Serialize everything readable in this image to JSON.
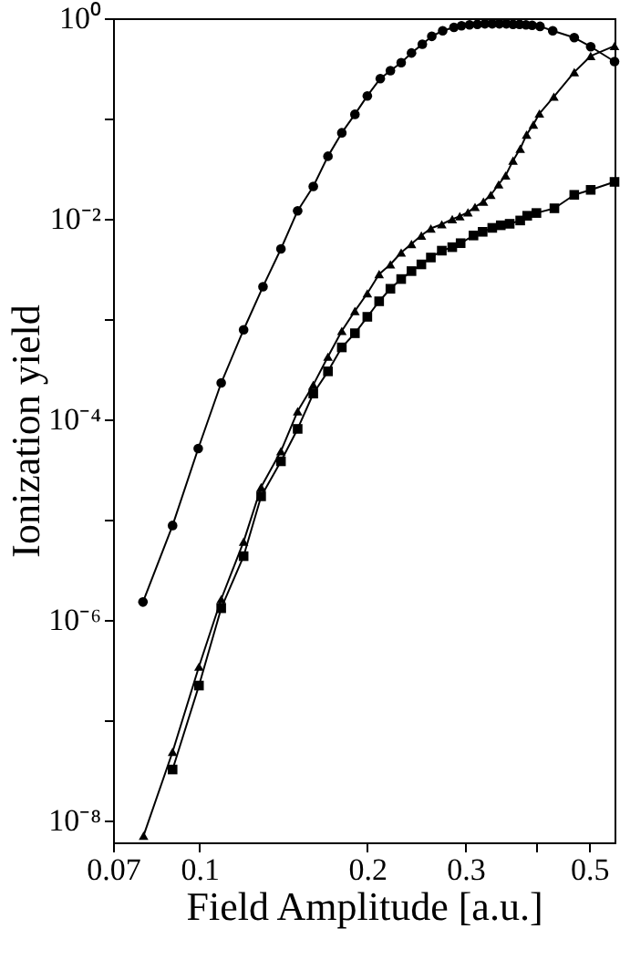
{
  "chart_data": {
    "type": "line",
    "xlabel": "Field Amplitude [a.u.]",
    "ylabel": "Ionization yield",
    "log": "xy",
    "grid": false,
    "xlim": [
      0.07,
      0.555
    ],
    "ylim": [
      6e-09,
      1
    ],
    "xticks": [
      0.07,
      0.1,
      0.2,
      0.3,
      {
        "value": 0.4,
        "label": null
      },
      0.5
    ],
    "yticks": [
      {
        "value": 1,
        "label": "10⁰"
      },
      {
        "value": 0.1,
        "label": null
      },
      {
        "value": 0.01,
        "label": "10⁻²"
      },
      {
        "value": 0.001,
        "label": null
      },
      {
        "value": 0.0001,
        "label": "10⁻⁴"
      },
      {
        "value": 1e-05,
        "label": null
      },
      {
        "value": 1e-06,
        "label": "10⁻⁶"
      },
      {
        "value": 1e-07,
        "label": null
      },
      {
        "value": 1e-08,
        "label": "10⁻⁸"
      }
    ],
    "series": [
      {
        "color": "#000000",
        "marker": "circle",
        "x": [
          0.0792,
          0.0895,
          0.0995,
          0.1094,
          0.12,
          0.13,
          0.14,
          0.15,
          0.16,
          0.17,
          0.18,
          0.19,
          0.2,
          0.211,
          0.22,
          0.23,
          0.24,
          0.251,
          0.261,
          0.273,
          0.286,
          0.295,
          0.305,
          0.315,
          0.325,
          0.335,
          0.345,
          0.355,
          0.365,
          0.375,
          0.385,
          0.395,
          0.408,
          0.43,
          0.47,
          0.503,
          0.555
        ],
        "values": [
          1.5e-06,
          8.7e-06,
          5.1e-05,
          0.00023,
          0.00078,
          0.0021,
          0.005,
          0.012,
          0.021,
          0.042,
          0.072,
          0.11,
          0.168,
          0.25,
          0.3,
          0.36,
          0.45,
          0.55,
          0.66,
          0.75,
          0.81,
          0.84,
          0.86,
          0.87,
          0.88,
          0.88,
          0.88,
          0.88,
          0.87,
          0.87,
          0.86,
          0.85,
          0.83,
          0.75,
          0.64,
          0.52,
          0.37
        ]
      },
      {
        "color": "#000000",
        "marker": "triangle",
        "x": [
          0.0794,
          0.0895,
          0.0998,
          0.1094,
          0.12,
          0.129,
          0.14,
          0.15,
          0.16,
          0.17,
          0.18,
          0.19,
          0.2,
          0.21,
          0.22,
          0.23,
          0.24,
          0.25,
          0.26,
          0.272,
          0.284,
          0.293,
          0.303,
          0.312,
          0.323,
          0.333,
          0.344,
          0.354,
          0.365,
          0.376,
          0.386,
          0.397,
          0.407,
          0.432,
          0.47,
          0.503,
          0.555
        ],
        "values": [
          7e-09,
          4.8e-08,
          3.4e-07,
          1.6e-06,
          6e-06,
          2.1e-05,
          4.8e-05,
          0.00012,
          0.00022,
          0.00042,
          0.00076,
          0.0012,
          0.0018,
          0.0028,
          0.0035,
          0.0046,
          0.0056,
          0.0068,
          0.008,
          0.0088,
          0.0099,
          0.0106,
          0.0116,
          0.0131,
          0.0148,
          0.0173,
          0.022,
          0.027,
          0.038,
          0.05,
          0.069,
          0.087,
          0.112,
          0.165,
          0.29,
          0.42,
          0.53
        ]
      },
      {
        "color": "#000000",
        "marker": "square",
        "x": [
          0.0895,
          0.0998,
          0.1094,
          0.12,
          0.129,
          0.14,
          0.15,
          0.16,
          0.17,
          0.18,
          0.19,
          0.2,
          0.21,
          0.22,
          0.23,
          0.24,
          0.25,
          0.26,
          0.272,
          0.284,
          0.294,
          0.31,
          0.322,
          0.335,
          0.347,
          0.36,
          0.376,
          0.387,
          0.402,
          0.433,
          0.47,
          0.503,
          0.555
        ],
        "values": [
          3.2e-08,
          2.2e-07,
          1.3e-06,
          4.3e-06,
          1.7e-05,
          3.8e-05,
          8e-05,
          0.00018,
          0.0003,
          0.00052,
          0.00072,
          0.00105,
          0.0015,
          0.002,
          0.0025,
          0.003,
          0.0035,
          0.0041,
          0.0048,
          0.0052,
          0.0057,
          0.0068,
          0.0074,
          0.0081,
          0.0086,
          0.0089,
          0.0096,
          0.0107,
          0.0114,
          0.0127,
          0.0173,
          0.0194,
          0.0233
        ]
      }
    ]
  }
}
